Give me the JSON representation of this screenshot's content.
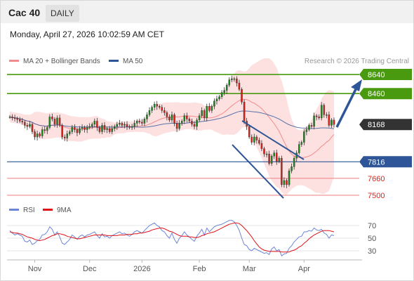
{
  "header": {
    "instrument": "Cac 40",
    "timeframe": "DAILY",
    "timestamp": "Monday, April 27, 2026 10:02:59 AM CET"
  },
  "legend": {
    "items": [
      {
        "label": "MA 20 + Bollinger Bands",
        "color": "#f28b8b"
      },
      {
        "label": "MA 50",
        "color": "#2e5597"
      }
    ],
    "credit": "Research © 2026 Trading Central"
  },
  "rsi_legend": {
    "items": [
      {
        "label": "RSI",
        "color": "#6b86d6"
      },
      {
        "label": "9MA",
        "color": "#e0131a"
      }
    ]
  },
  "colors": {
    "resistance": "#4a9a10",
    "pivot": "#2e5597",
    "support": "#f08a8a",
    "support_text": "#d9231b",
    "last_price": "#333333",
    "band_fill": "#fde1e1",
    "candle_up": "#1c8a1c",
    "candle_down": "#d9231b",
    "arrow": "#2e5597"
  },
  "chart_data": {
    "type": "candlestick",
    "instrument": "Cac 40",
    "timeframe": "DAILY",
    "ylim": [
      7440,
      8700
    ],
    "x_tick_labels": [
      "Nov",
      "Dec",
      "2026",
      "Feb",
      "Mar",
      "Apr"
    ],
    "levels": [
      {
        "value": 8640,
        "label": "8640",
        "kind": "resistance"
      },
      {
        "value": 8460,
        "label": "8460",
        "kind": "resistance"
      },
      {
        "value": 8168,
        "label": "8168",
        "kind": "last"
      },
      {
        "value": 7816,
        "label": "7816",
        "kind": "pivot"
      },
      {
        "value": 7660,
        "label": "7660",
        "kind": "support"
      },
      {
        "value": 7500,
        "label": "7500",
        "kind": "support"
      }
    ],
    "close": [
      8240,
      8230,
      8225,
      8215,
      8200,
      8190,
      8160,
      8150,
      8170,
      8100,
      8050,
      8080,
      8060,
      8120,
      8110,
      8140,
      8240,
      8220,
      8170,
      8230,
      8160,
      8050,
      8040,
      8080,
      8100,
      8140,
      8120,
      8090,
      8130,
      8140,
      8120,
      8140,
      8150,
      8170,
      8200,
      8140,
      8100,
      8160,
      8120,
      8130,
      8100,
      8130,
      8150,
      8170,
      8180,
      8160,
      8170,
      8150,
      8140,
      8150,
      8180,
      8200,
      8190,
      8180,
      8220,
      8260,
      8300,
      8330,
      8360,
      8340,
      8330,
      8300,
      8280,
      8240,
      8210,
      8260,
      8180,
      8130,
      8180,
      8200,
      8250,
      8220,
      8200,
      8170,
      8150,
      8210,
      8250,
      8300,
      8230,
      8340,
      8300,
      8340,
      8390,
      8410,
      8430,
      8470,
      8490,
      8540,
      8590,
      8600,
      8600,
      8560,
      8500,
      8380,
      8200,
      8150,
      8050,
      8000,
      8050,
      8020,
      7990,
      7940,
      7890,
      7890,
      7800,
      7870,
      7900,
      7820,
      7850,
      7600,
      7640,
      7600,
      7730,
      7770,
      7850,
      7900,
      7980,
      8000,
      8100,
      8120,
      8160,
      8150,
      8250,
      8240,
      8230,
      8350,
      8260,
      8260,
      8160,
      8210,
      8168
    ],
    "rsi": {
      "ticks": [
        70,
        50,
        30
      ],
      "ylim": [
        20,
        80
      ],
      "values": [
        62,
        58,
        55,
        57,
        55,
        53,
        45,
        44,
        47,
        40,
        42,
        46,
        48,
        55,
        56,
        60,
        68,
        64,
        55,
        60,
        52,
        42,
        40,
        44,
        48,
        55,
        52,
        48,
        53,
        55,
        52,
        55,
        56,
        58,
        60,
        54,
        50,
        57,
        52,
        53,
        50,
        54,
        56,
        58,
        60,
        57,
        58,
        55,
        53,
        56,
        60,
        62,
        60,
        58,
        62,
        66,
        70,
        72,
        74,
        70,
        68,
        62,
        60,
        54,
        50,
        58,
        48,
        42,
        50,
        54,
        60,
        55,
        52,
        48,
        45,
        53,
        58,
        64,
        55,
        66,
        60,
        64,
        68,
        70,
        71,
        72,
        74,
        76,
        78,
        78,
        76,
        70,
        62,
        50,
        40,
        38,
        32,
        30,
        34,
        32,
        30,
        28,
        26,
        27,
        24,
        33,
        36,
        30,
        32,
        22,
        25,
        26,
        34,
        38,
        44,
        48,
        52,
        53,
        60,
        60,
        62,
        61,
        66,
        63,
        62,
        64,
        58,
        56,
        50,
        55,
        54
      ],
      "ma9": [
        60,
        59,
        58,
        58,
        57,
        56,
        54,
        52,
        51,
        50,
        48,
        47,
        46,
        47,
        48,
        50,
        52,
        54,
        55,
        57,
        57,
        56,
        55,
        53,
        52,
        51,
        50,
        49,
        49,
        50,
        51,
        52,
        53,
        54,
        55,
        55,
        55,
        55,
        55,
        54,
        54,
        54,
        54,
        54,
        55,
        55,
        55,
        56,
        56,
        56,
        57,
        57,
        58,
        58,
        59,
        60,
        61,
        63,
        64,
        65,
        66,
        66,
        65,
        63,
        61,
        60,
        58,
        56,
        54,
        53,
        53,
        53,
        52,
        52,
        51,
        51,
        52,
        54,
        55,
        57,
        58,
        59,
        60,
        62,
        64,
        66,
        68,
        70,
        72,
        73,
        74,
        74,
        73,
        70,
        66,
        62,
        57,
        52,
        46,
        41,
        36,
        33,
        31,
        30,
        29,
        29,
        29,
        29,
        29,
        28,
        28,
        28,
        28,
        30,
        31,
        33,
        36,
        38,
        42,
        45,
        49,
        52,
        55,
        57,
        59,
        61,
        62,
        62,
        62,
        61,
        60
      ]
    }
  }
}
